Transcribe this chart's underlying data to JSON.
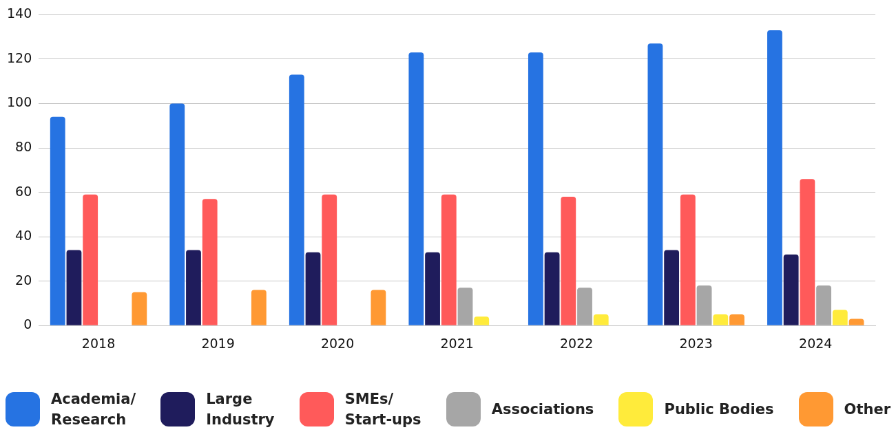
{
  "chart_data": {
    "type": "bar",
    "categories": [
      "2018",
      "2019",
      "2020",
      "2021",
      "2022",
      "2023",
      "2024"
    ],
    "series": [
      {
        "name": "Academia/\nResearch",
        "color": "#2673e2",
        "values": [
          94,
          100,
          113,
          123,
          123,
          127,
          133
        ]
      },
      {
        "name": "Large\nIndustry",
        "color": "#1f1c5c",
        "values": [
          34,
          34,
          33,
          33,
          33,
          34,
          32
        ]
      },
      {
        "name": "SMEs/\nStart-ups",
        "color": "#ff5a5a",
        "values": [
          59,
          57,
          59,
          59,
          58,
          59,
          66
        ]
      },
      {
        "name": "Associations",
        "color": "#a6a6a6",
        "values": [
          0,
          0,
          0,
          17,
          17,
          18,
          18
        ]
      },
      {
        "name": "Public Bodies",
        "color": "#ffeb3b",
        "values": [
          0,
          0,
          0,
          4,
          5,
          5,
          7
        ]
      },
      {
        "name": "Other",
        "color": "#ff9933",
        "values": [
          15,
          16,
          16,
          0,
          0,
          5,
          3
        ]
      }
    ],
    "ylim": [
      0,
      140
    ],
    "yticks": [
      0,
      20,
      40,
      60,
      80,
      100,
      120,
      140
    ],
    "grid": "y",
    "legend": "bottom"
  }
}
